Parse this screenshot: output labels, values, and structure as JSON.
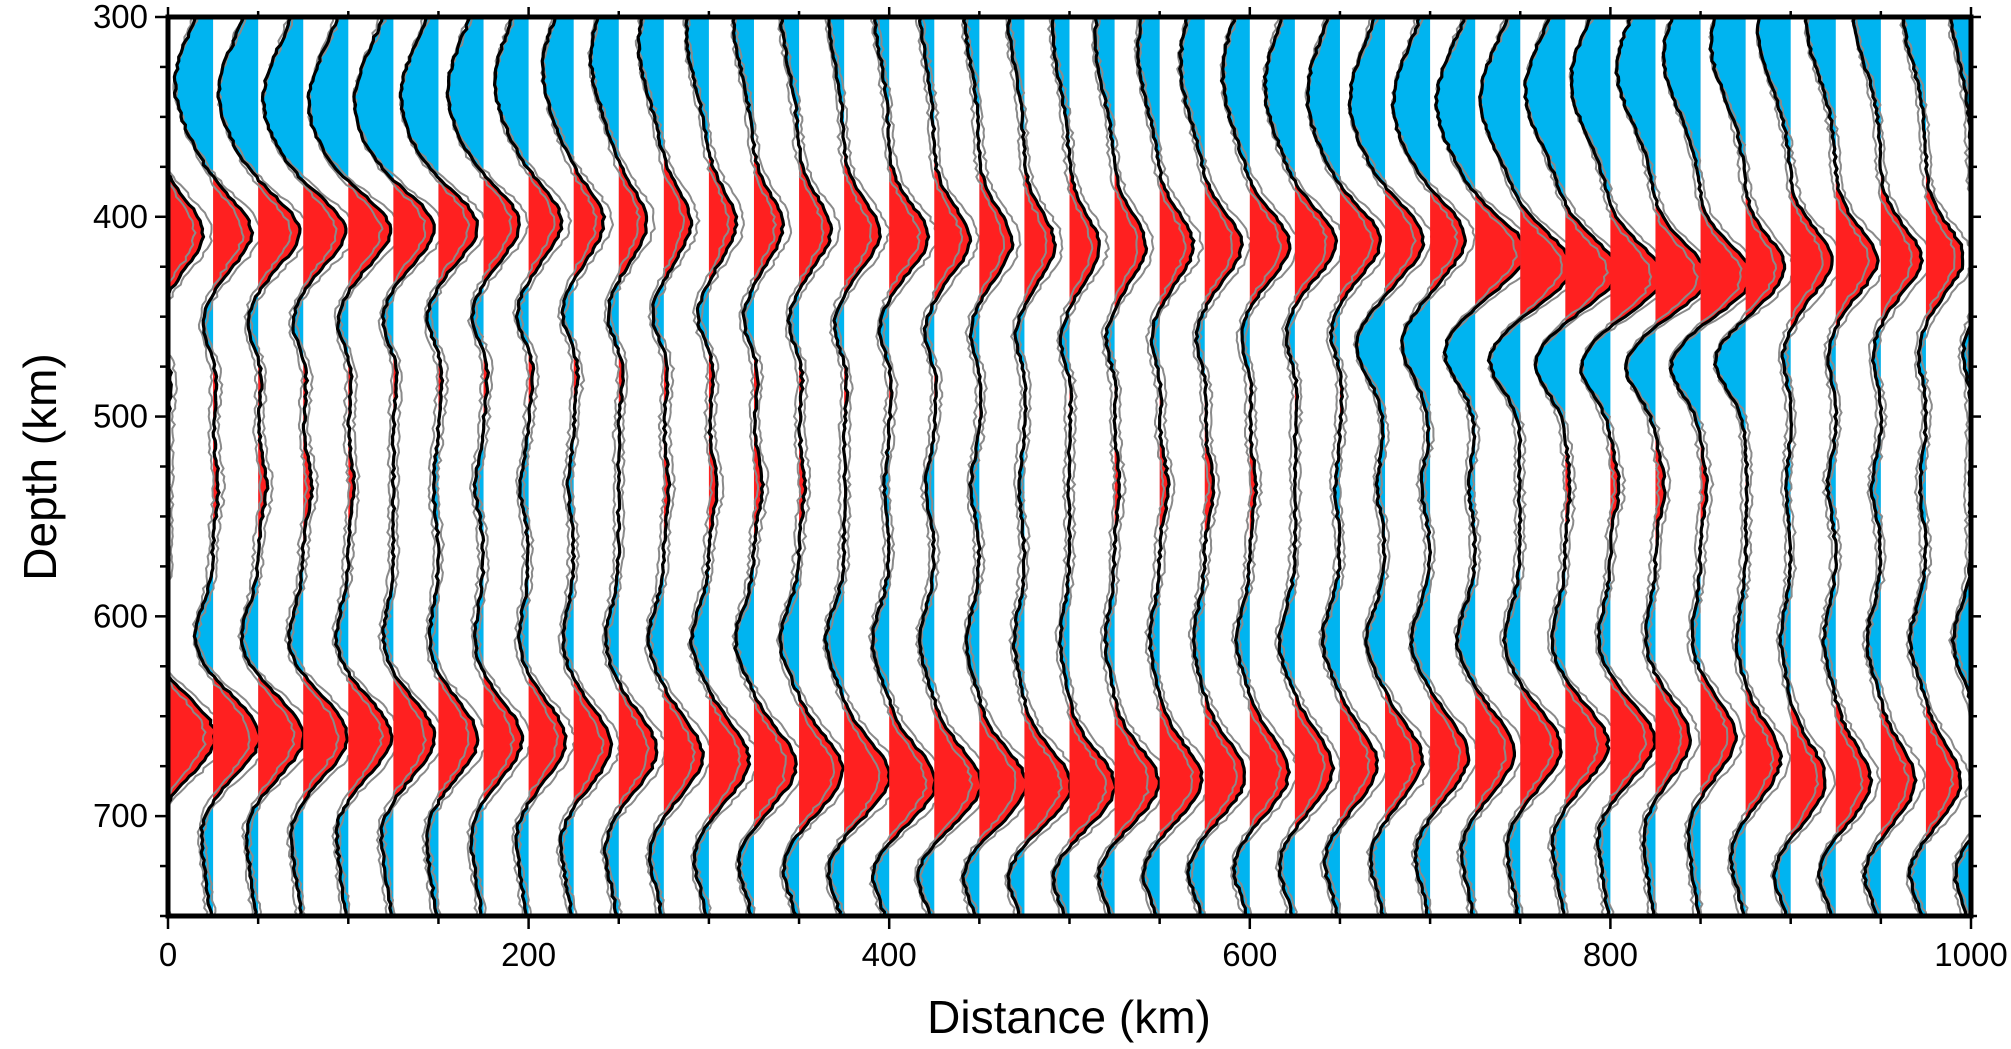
{
  "chart_data": {
    "type": "line",
    "title": "",
    "xlabel": "Distance (km)",
    "ylabel": "Depth (km)",
    "xlim": [
      0,
      1000
    ],
    "ylim": [
      300,
      750
    ],
    "y_inverted": true,
    "grid": false,
    "legend": "none",
    "x_ticks": [
      0,
      200,
      400,
      600,
      800,
      1000
    ],
    "y_ticks": [
      300,
      400,
      500,
      600,
      700
    ],
    "trace_spacing_km": 25,
    "trace_count": 41,
    "colors": {
      "positive_fill": "#ff2020",
      "negative_fill": "#00b4f0",
      "mean_trace": "#000000",
      "bound_traces": "#8a8a8a"
    },
    "series": [
      {
        "feature": "410-km discontinuity (positive)",
        "x": [
          0,
          100,
          200,
          300,
          400,
          500,
          600,
          700,
          750,
          800,
          850,
          900,
          1000
        ],
        "depth": [
          408,
          406,
          402,
          403,
          410,
          415,
          414,
          410,
          425,
          430,
          430,
          422,
          420
        ]
      },
      {
        "feature": "660-km discontinuity (positive)",
        "x": [
          0,
          100,
          200,
          300,
          400,
          500,
          600,
          700,
          800,
          850,
          900,
          1000
        ],
        "depth": [
          660,
          660,
          662,
          672,
          683,
          685,
          678,
          670,
          662,
          660,
          682,
          682
        ]
      }
    ]
  }
}
